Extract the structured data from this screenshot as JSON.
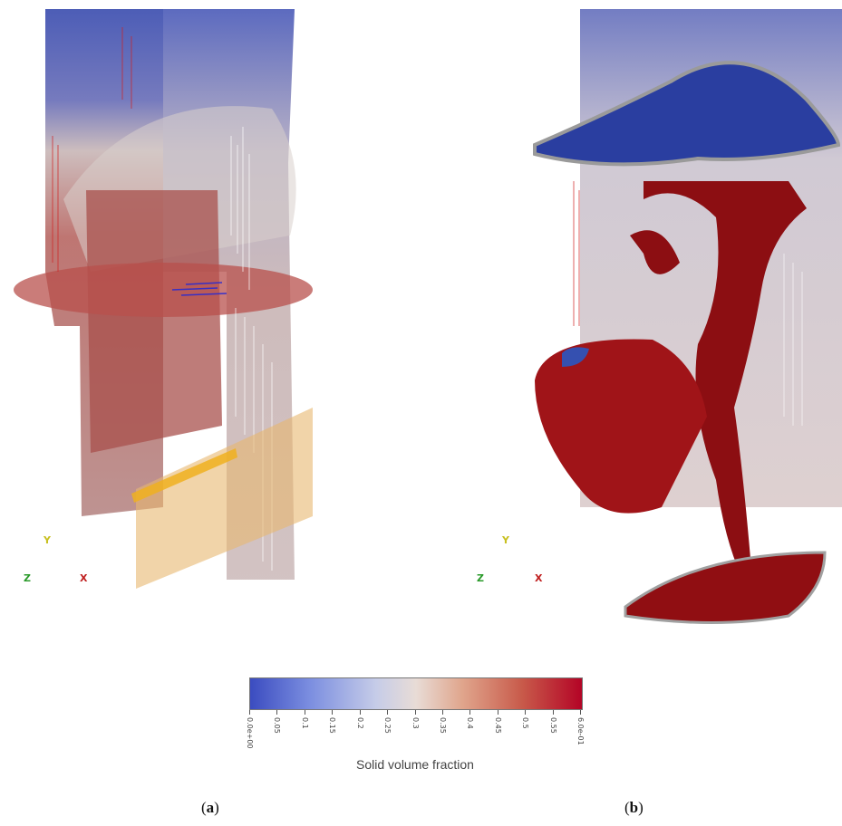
{
  "panels": [
    {
      "caption_open": "(",
      "caption_letter": "a",
      "caption_close": ")"
    },
    {
      "caption_open": "(",
      "caption_letter": "b",
      "caption_close": ")"
    }
  ],
  "axes": {
    "y": "Y",
    "z": "Z",
    "x": "X"
  },
  "colorbar": {
    "title": "Solid volume fraction",
    "ticks": [
      "0.0e+00",
      "0.05",
      "0.1",
      "0.15",
      "0.2",
      "0.25",
      "0.3",
      "0.35",
      "0.4",
      "0.45",
      "0.5",
      "0.55",
      "6.0e-01"
    ],
    "colors": {
      "low": "#3b4cc0",
      "mid": "#e8dcd6",
      "high": "#b40426"
    }
  }
}
